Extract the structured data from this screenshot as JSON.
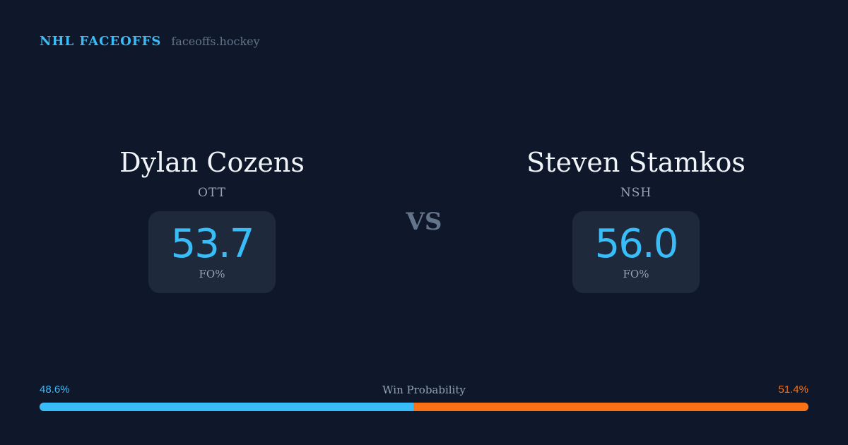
{
  "header": {
    "title": "NHL FACEOFFS",
    "site": "faceoffs.hockey"
  },
  "players": [
    {
      "name": "Dylan Cozens",
      "team": "OTT",
      "fo_pct": "53.7",
      "fo_label": "FO%"
    },
    {
      "name": "Steven Stamkos",
      "team": "NSH",
      "fo_pct": "56.0",
      "fo_label": "FO%"
    }
  ],
  "vs_label": "VS",
  "win_probability": {
    "label": "Win Probability",
    "left_text": "48.6%",
    "right_text": "51.4%",
    "left_value": 48.6,
    "right_value": 51.4
  },
  "colors": {
    "background": "#0f172a",
    "card": "#1e293b",
    "left_accent": "#38bdf8",
    "right_accent": "#f97316"
  }
}
